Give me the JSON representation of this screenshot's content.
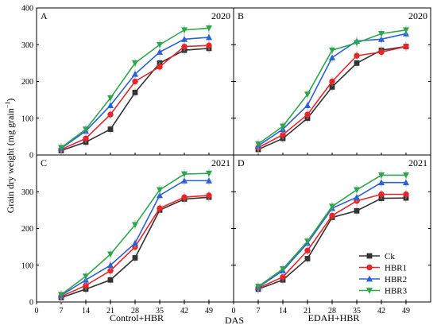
{
  "figure": {
    "ylabel_main": "Grain dry weight (mg grain",
    "ylabel_sup": "−1",
    "ylabel_close": ")",
    "xlabel_center": "DAS",
    "xlabel_left": "Control+HBR",
    "xlabel_right": "EDAH+HBR"
  },
  "legend": {
    "placement": "bottom-right of panel D",
    "entries": [
      {
        "name": "Ck",
        "color": "#333333",
        "marker": "square"
      },
      {
        "name": "HBR1",
        "color": "#e8262a",
        "marker": "circle"
      },
      {
        "name": "HBR2",
        "color": "#2a61d6",
        "marker": "triangle-up"
      },
      {
        "name": "HBR3",
        "color": "#2ca84a",
        "marker": "triangle-down"
      }
    ]
  },
  "chart_data": [
    {
      "panel": "A",
      "year": "2020",
      "type": "line",
      "x": [
        7,
        14,
        21,
        28,
        35,
        42,
        49
      ],
      "xlim": [
        0,
        56
      ],
      "ylim": [
        0,
        400
      ],
      "xticks": [
        0,
        7,
        14,
        21,
        28,
        35,
        42,
        49
      ],
      "yticks": [
        0,
        100,
        200,
        300,
        400
      ],
      "series": [
        {
          "name": "Ck",
          "values": [
            12,
            35,
            70,
            170,
            250,
            285,
            290
          ]
        },
        {
          "name": "HBR1",
          "values": [
            15,
            45,
            110,
            200,
            240,
            295,
            298
          ]
        },
        {
          "name": "HBR2",
          "values": [
            18,
            65,
            135,
            220,
            280,
            315,
            320
          ]
        },
        {
          "name": "HBR3",
          "values": [
            20,
            70,
            155,
            250,
            300,
            340,
            345
          ]
        }
      ]
    },
    {
      "panel": "B",
      "year": "2020",
      "type": "line",
      "x": [
        7,
        14,
        21,
        28,
        35,
        42,
        49
      ],
      "xlim": [
        0,
        56
      ],
      "ylim": [
        0,
        400
      ],
      "xticks": [
        0,
        7,
        14,
        21,
        28,
        35,
        42,
        49
      ],
      "yticks": [
        0,
        100,
        200,
        300,
        400
      ],
      "series": [
        {
          "name": "Ck",
          "values": [
            15,
            45,
            100,
            185,
            250,
            285,
            295
          ]
        },
        {
          "name": "HBR1",
          "values": [
            20,
            55,
            110,
            200,
            270,
            280,
            295
          ]
        },
        {
          "name": "HBR2",
          "values": [
            25,
            70,
            135,
            265,
            310,
            315,
            330
          ]
        },
        {
          "name": "HBR3",
          "values": [
            30,
            78,
            165,
            285,
            305,
            330,
            340
          ]
        }
      ]
    },
    {
      "panel": "C",
      "year": "2021",
      "type": "line",
      "x": [
        7,
        14,
        21,
        28,
        35,
        42,
        49
      ],
      "xlim": [
        0,
        56
      ],
      "ylim": [
        0,
        400
      ],
      "xticks": [
        0,
        7,
        14,
        21,
        28,
        35,
        42,
        49
      ],
      "yticks": [
        0,
        100,
        200,
        300
      ],
      "series": [
        {
          "name": "Ck",
          "values": [
            12,
            35,
            60,
            120,
            250,
            280,
            285
          ]
        },
        {
          "name": "HBR1",
          "values": [
            15,
            45,
            85,
            150,
            255,
            285,
            290
          ]
        },
        {
          "name": "HBR2",
          "values": [
            18,
            60,
            100,
            160,
            290,
            330,
            330
          ]
        },
        {
          "name": "HBR3",
          "values": [
            20,
            70,
            130,
            210,
            305,
            348,
            350
          ]
        }
      ]
    },
    {
      "panel": "D",
      "year": "2021",
      "type": "line",
      "x": [
        7,
        14,
        21,
        28,
        35,
        42,
        49
      ],
      "xlim": [
        0,
        56
      ],
      "ylim": [
        0,
        400
      ],
      "xticks": [
        0,
        7,
        14,
        21,
        28,
        35,
        42,
        49
      ],
      "yticks": [
        0,
        100,
        200,
        300
      ],
      "series": [
        {
          "name": "Ck",
          "values": [
            35,
            60,
            118,
            230,
            248,
            282,
            283
          ]
        },
        {
          "name": "HBR1",
          "values": [
            38,
            68,
            140,
            235,
            275,
            293,
            293
          ]
        },
        {
          "name": "HBR2",
          "values": [
            40,
            85,
            160,
            255,
            285,
            325,
            325
          ]
        },
        {
          "name": "HBR3",
          "values": [
            42,
            90,
            165,
            260,
            305,
            345,
            345
          ]
        }
      ]
    }
  ]
}
